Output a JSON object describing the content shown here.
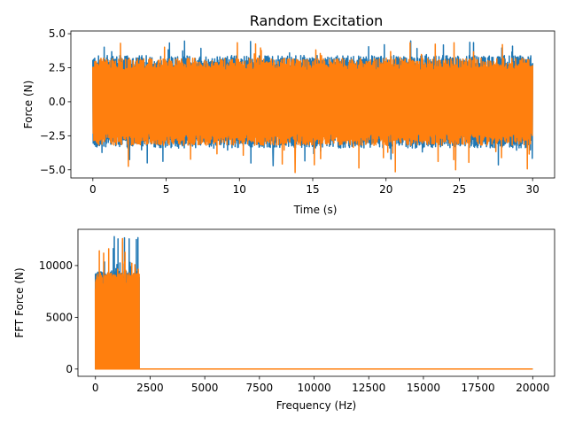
{
  "figure_title": "Random Excitation",
  "colors": {
    "series1": "#1f77b4",
    "series2": "#ff7f0e"
  },
  "chart_data": [
    {
      "type": "line",
      "title": "Random Excitation",
      "xlabel": "Time (s)",
      "ylabel": "Force (N)",
      "xlim": [
        -1.5,
        31.5
      ],
      "ylim": [
        -5.6,
        5.2
      ],
      "xticks": [
        0,
        5,
        10,
        15,
        20,
        25,
        30
      ],
      "xtick_labels": [
        "0",
        "5",
        "10",
        "15",
        "20",
        "25",
        "30"
      ],
      "yticks": [
        -5.0,
        -2.5,
        0.0,
        2.5,
        5.0
      ],
      "ytick_labels": [
        "−5.0",
        "−2.5",
        "0.0",
        "2.5",
        "5.0"
      ],
      "grid": false,
      "series": [
        {
          "color": "#1f77b4",
          "x_range": [
            0,
            30
          ],
          "typical_amplitude": 3.4,
          "peak_max": 4.5,
          "peak_min": -4.7
        },
        {
          "color": "#ff7f0e",
          "x_range": [
            0,
            30
          ],
          "typical_amplitude": 3.2,
          "peak_max": 4.4,
          "peak_min": -5.2
        }
      ]
    },
    {
      "type": "line",
      "title": "",
      "xlabel": "Frequency (Hz)",
      "ylabel": "FFT Force (N)",
      "xlim": [
        -800,
        21000
      ],
      "ylim": [
        -700,
        13500
      ],
      "xticks": [
        0,
        2500,
        5000,
        7500,
        10000,
        12500,
        15000,
        17500,
        20000
      ],
      "xtick_labels": [
        "0",
        "2500",
        "5000",
        "7500",
        "10000",
        "12500",
        "15000",
        "17500",
        "20000"
      ],
      "yticks": [
        0,
        5000,
        10000
      ],
      "ytick_labels": [
        "0",
        "5000",
        "10000"
      ],
      "grid": false,
      "series": [
        {
          "color": "#1f77b4",
          "band_hz": [
            0,
            2000
          ],
          "typical_peak": 9500,
          "peak_max": 12800,
          "baseline_after_band": 0,
          "x_end": 20000
        },
        {
          "color": "#ff7f0e",
          "band_hz": [
            0,
            2000
          ],
          "typical_peak": 9300,
          "peak_max": 12600,
          "baseline_after_band": 0,
          "x_end": 20000
        }
      ]
    }
  ]
}
